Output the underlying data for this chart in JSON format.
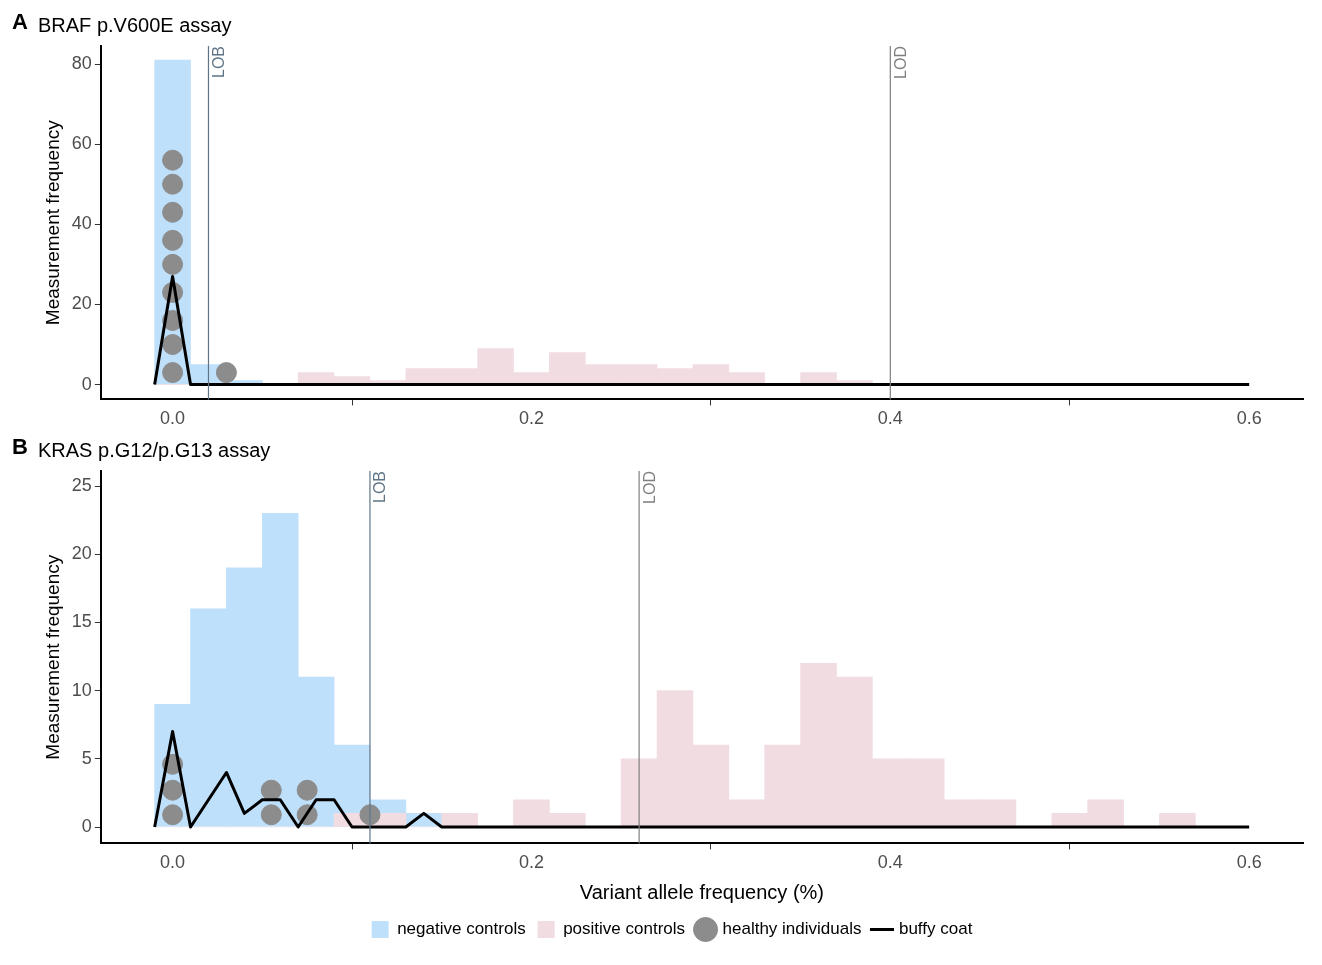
{
  "chart_data": [
    {
      "type": "histogram",
      "title": "BRAF p.V600E assay",
      "ylabel": "Measurement frequency",
      "annotations": [
        "A"
      ],
      "bins": [
        -0.01,
        0.01,
        0.03,
        0.05,
        0.07,
        0.09,
        0.11,
        0.13,
        0.15,
        0.17,
        0.19,
        0.21,
        0.23,
        0.25,
        0.27,
        0.29,
        0.31,
        0.33,
        0.35,
        0.37,
        0.39,
        0.41,
        0.43,
        0.45,
        0.47,
        0.49,
        0.51,
        0.53,
        0.55,
        0.57,
        0.59
      ],
      "series": [
        {
          "color": "#bfe0fb",
          "values": [
            81,
            5,
            1,
            0,
            0,
            0,
            0,
            0,
            0,
            0,
            0,
            0,
            0,
            0,
            0,
            0,
            0,
            0,
            0,
            0,
            0,
            0,
            0,
            0,
            0,
            0,
            0,
            0,
            0,
            0
          ]
        },
        {
          "color": "#f0dce1",
          "values": [
            0,
            0,
            0,
            0,
            3,
            2,
            1,
            4,
            4,
            9,
            3,
            8,
            5,
            5,
            4,
            5,
            3,
            0,
            3,
            1,
            0,
            0,
            0,
            0,
            0,
            0,
            0,
            0,
            0,
            0
          ]
        },
        {
          "type": "scatter",
          "marker": "circle",
          "color": "#8c8c8c",
          "x": [
            0,
            0,
            0,
            0,
            0,
            0,
            0,
            0,
            0,
            0.03
          ],
          "values": [
            3,
            10,
            16,
            23,
            30,
            36,
            43,
            50,
            56,
            3
          ]
        },
        {
          "type": "line",
          "marker": "none",
          "color": "#000000",
          "x": [
            -0.01,
            0,
            0.01,
            0.6
          ],
          "values": [
            0,
            27,
            0,
            0
          ]
        }
      ],
      "xlim": [
        -0.04,
        0.63
      ],
      "xticks": [
        {
          "value": 0,
          "label": "0.0"
        },
        0.2,
        0.4,
        0.6
      ],
      "ylim": [
        -3.7,
        84.5
      ],
      "yticks": [
        0,
        20,
        40,
        60,
        80
      ],
      "ref_lines": [
        {
          "axis": "x",
          "value": 0.02,
          "label": "LOB",
          "color": "#5f7587"
        },
        {
          "axis": "x",
          "value": 0.4,
          "label": "LOD",
          "color": "#7f7f7f"
        }
      ],
      "grid": false,
      "legend": false
    },
    {
      "type": "histogram",
      "title": "KRAS p.G12/p.G13 assay",
      "xlabel": "Variant allele frequency (%)",
      "ylabel": "Measurement frequency",
      "annotations": [
        "B"
      ],
      "bins": [
        -0.01,
        0.01,
        0.03,
        0.05,
        0.07,
        0.09,
        0.11,
        0.13,
        0.15,
        0.17,
        0.19,
        0.21,
        0.23,
        0.25,
        0.27,
        0.29,
        0.31,
        0.33,
        0.35,
        0.37,
        0.39,
        0.41,
        0.43,
        0.45,
        0.47,
        0.49,
        0.51,
        0.53,
        0.55,
        0.57,
        0.59
      ],
      "series": [
        {
          "name": "negative controls",
          "color": "#bfe0fb",
          "values": [
            9,
            16,
            19,
            23,
            11,
            6,
            2,
            1,
            0,
            0,
            0,
            0,
            0,
            0,
            0,
            0,
            0,
            0,
            0,
            0,
            0,
            0,
            0,
            0,
            0,
            0,
            0,
            0,
            0,
            0
          ]
        },
        {
          "name": "positive controls",
          "color": "#f0dce1",
          "values": [
            0,
            0,
            0,
            0,
            0,
            1,
            1,
            0,
            1,
            0,
            2,
            1,
            0,
            5,
            10,
            6,
            2,
            6,
            12,
            11,
            5,
            5,
            2,
            2,
            0,
            1,
            2,
            0,
            1,
            0
          ]
        },
        {
          "type": "scatter",
          "marker": "circle",
          "name": "healthy individuals",
          "color": "#8c8c8c",
          "x": [
            0,
            0,
            0,
            0.055,
            0.055,
            0.075,
            0.075,
            0.11
          ],
          "values": [
            0.9,
            2.7,
            4.6,
            0.9,
            2.7,
            0.9,
            2.7,
            0.9
          ]
        },
        {
          "type": "line",
          "marker": "none",
          "name": "buffy coat",
          "color": "#000000",
          "x": [
            -0.01,
            0,
            0.01,
            0.03,
            0.04,
            0.05,
            0.06,
            0.07,
            0.08,
            0.09,
            0.1,
            0.13,
            0.14,
            0.15,
            0.6
          ],
          "values": [
            0,
            7,
            0,
            4,
            1,
            2,
            2,
            0,
            2,
            2,
            0,
            0,
            1,
            0,
            0
          ]
        }
      ],
      "xlim": [
        -0.04,
        0.63
      ],
      "xticks": [
        {
          "value": 0,
          "label": "0.0"
        },
        0.2,
        0.4,
        0.6
      ],
      "ylim": [
        -1.2,
        26.1
      ],
      "yticks": [
        0,
        5,
        10,
        15,
        20,
        25
      ],
      "ref_lines": [
        {
          "axis": "x",
          "value": 0.11,
          "label": "LOB",
          "color": "#5f7587"
        },
        {
          "axis": "x",
          "value": 0.26,
          "label": "LOD",
          "color": "#7f7f7f"
        }
      ],
      "grid": false,
      "legend": "bottom"
    }
  ]
}
